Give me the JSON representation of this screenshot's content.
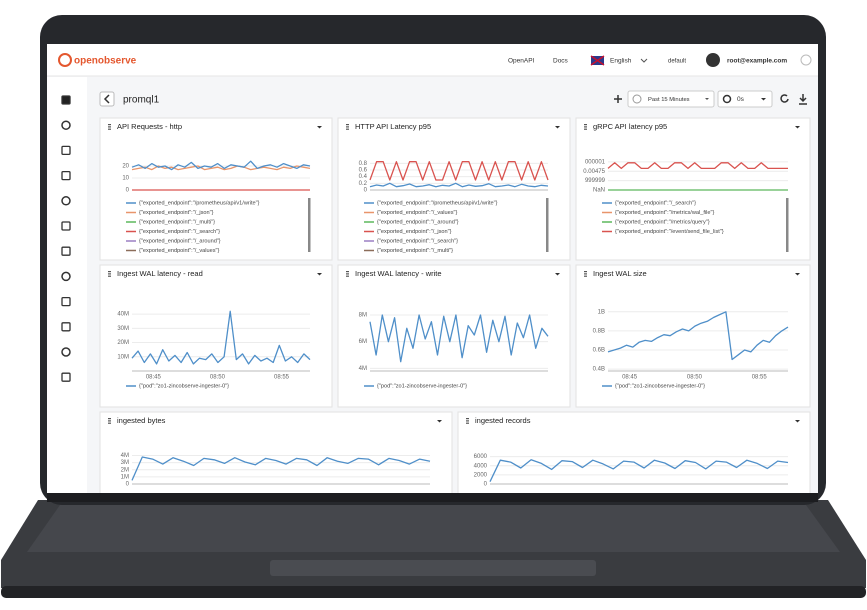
{
  "header": {
    "logo": "openobserve",
    "nav": [
      "OpenAPI",
      "Docs",
      "English",
      "default",
      "root@example.com"
    ]
  },
  "toolbar": {
    "dashboard": "promql1",
    "time_range": "Past 15 Minutes",
    "refresh": "0s"
  },
  "panels": [
    {
      "title": "API Requests - http",
      "ylim": [
        0,
        25
      ],
      "yticks": [
        0,
        10,
        20
      ],
      "legend": [
        {
          "label": "{\"exported_endpoint\":\"/prometheus/api/v1/write\"}",
          "color": "#4f8fc9"
        },
        {
          "label": "{\"exported_endpoint\":\"/_json\"}",
          "color": "#e8956b"
        },
        {
          "label": "{\"exported_endpoint\":\"/_multi\"}",
          "color": "#5cb85c"
        },
        {
          "label": "{\"exported_endpoint\":\"/_search\"}",
          "color": "#d9534f"
        },
        {
          "label": "{\"exported_endpoint\":\"/_around\"}",
          "color": "#9b7fc2"
        },
        {
          "label": "{\"exported_endpoint\":\"/_values\"}",
          "color": "#8c6d5a"
        }
      ],
      "series": [
        {
          "color": "#e8956b",
          "values": [
            17,
            18,
            19,
            17,
            20,
            18,
            19,
            17,
            18,
            19,
            20,
            17,
            18,
            19,
            17,
            18,
            20,
            19,
            17,
            18,
            19,
            18,
            17,
            19,
            18,
            20,
            19,
            18
          ]
        },
        {
          "color": "#4f8fc9",
          "values": [
            19,
            21,
            18,
            22,
            19,
            20,
            17,
            21,
            19,
            23,
            18,
            20,
            19,
            22,
            18,
            21,
            20,
            19,
            24,
            18,
            20,
            21,
            19,
            22,
            20,
            18,
            21,
            20
          ]
        },
        {
          "color": "#d9534f",
          "values": [
            0,
            0,
            0,
            0
          ]
        }
      ]
    },
    {
      "title": "HTTP API Latency p95",
      "ylim": [
        0,
        0.9
      ],
      "yticks": [
        0,
        0.2,
        0.4,
        0.6,
        0.8
      ],
      "legend": [
        {
          "label": "{\"exported_endpoint\":\"/prometheus/api/v1/write\"}",
          "color": "#4f8fc9"
        },
        {
          "label": "{\"exported_endpoint\":\"/_values\"}",
          "color": "#e8956b"
        },
        {
          "label": "{\"exported_endpoint\":\"/_around\"}",
          "color": "#5cb85c"
        },
        {
          "label": "{\"exported_endpoint\":\"/_json\"}",
          "color": "#d9534f"
        },
        {
          "label": "{\"exported_endpoint\":\"/_search\"}",
          "color": "#9b7fc2"
        },
        {
          "label": "{\"exported_endpoint\":\"/_multi\"}",
          "color": "#8c6d5a"
        }
      ],
      "series": [
        {
          "color": "#4f8fc9",
          "values": [
            0.1,
            0.15,
            0.12,
            0.2,
            0.1,
            0.13,
            0.18,
            0.1,
            0.12,
            0.16,
            0.1,
            0.14,
            0.12,
            0.2,
            0.1,
            0.15,
            0.11,
            0.13,
            0.19,
            0.1,
            0.12,
            0.15,
            0.1,
            0.17,
            0.12,
            0.1,
            0.14,
            0.12
          ]
        },
        {
          "color": "#d9534f",
          "values": [
            0.3,
            0.85,
            0.85,
            0.3,
            0.85,
            0.3,
            0.85,
            0.85,
            0.3,
            0.85,
            0.3,
            0.3,
            0.85,
            0.3,
            0.85,
            0.85,
            0.3,
            0.85,
            0.3,
            0.85,
            0.3,
            0.85,
            0.85,
            0.3,
            0.85,
            0.3,
            0.85,
            0.3
          ]
        }
      ]
    },
    {
      "title": "gRPC API latency p95",
      "ylim": [
        0,
        3.2
      ],
      "yticks": [
        {
          "value": 3,
          "label": "000001"
        },
        {
          "value": 2,
          "label": "0.00475"
        },
        {
          "value": 1,
          "label": "999999"
        },
        {
          "value": 0,
          "label": "NaN"
        }
      ],
      "legend": [
        {
          "label": "{\"exported_endpoint\":\"/_search\"}",
          "color": "#4f8fc9"
        },
        {
          "label": "{\"exported_endpoint\":\"/metrics/wal_file\"}",
          "color": "#e8956b"
        },
        {
          "label": "{\"exported_endpoint\":\"/metrics/query\"}",
          "color": "#5cb85c"
        },
        {
          "label": "{\"exported_endpoint\":\"/event/send_file_list\"}",
          "color": "#d9534f"
        }
      ],
      "series": [
        {
          "color": "#d9534f",
          "values": [
            2.3,
            2.9,
            2.3,
            2.9,
            2.9,
            2.3,
            2.3,
            2.9,
            2.3,
            2.3,
            2.9,
            2.9,
            2.3,
            2.9,
            2.3,
            2.3,
            2.3,
            2.9,
            2.9,
            2.3,
            2.9,
            2.3,
            2.3,
            2.9,
            2.3,
            2.3,
            2.3,
            2.3
          ]
        },
        {
          "color": "#5cb85c",
          "values": [
            0,
            0,
            0,
            0
          ]
        }
      ]
    },
    {
      "title": "Ingest WAL latency - read",
      "ylim": [
        0,
        45000000.0
      ],
      "yticks": [
        {
          "value": 10000000.0,
          "label": "10M"
        },
        {
          "value": 20000000.0,
          "label": "20M"
        },
        {
          "value": 30000000.0,
          "label": "30M"
        },
        {
          "value": 40000000.0,
          "label": "40M"
        }
      ],
      "xticks": [
        "08:45",
        "08:50",
        "08:55"
      ],
      "legend": [
        {
          "label": "{\"pod\":\"zo1-zincobserve-ingester-0\"}",
          "color": "#4f8fc9"
        }
      ],
      "series": [
        {
          "color": "#4f8fc9",
          "values": [
            9000000.0,
            14000000.0,
            6000000.0,
            12000000.0,
            5000000.0,
            15000000.0,
            7000000.0,
            11000000.0,
            6000000.0,
            13000000.0,
            5000000.0,
            9000000.0,
            8000000.0,
            12000000.0,
            6000000.0,
            10000000.0,
            42000000.0,
            8000000.0,
            12000000.0,
            5000000.0,
            11000000.0,
            7000000.0,
            9000000.0,
            6000000.0,
            18000000.0,
            7000000.0,
            10000000.0,
            6000000.0,
            12000000.0,
            8000000.0
          ]
        }
      ]
    },
    {
      "title": "Ingest WAL latency - write",
      "ylim": [
        3800000.0,
        8600000.0
      ],
      "yticks": [
        {
          "value": 4000000.0,
          "label": "4M"
        },
        {
          "value": 6000000.0,
          "label": "6M"
        },
        {
          "value": 8000000.0,
          "label": "8M"
        }
      ],
      "legend": [
        {
          "label": "{\"pod\":\"zo1-zincobserve-ingester-0\"}",
          "color": "#4f8fc9"
        }
      ],
      "series": [
        {
          "color": "#4f8fc9",
          "values": [
            7500000.0,
            5000000.0,
            8000000.0,
            6000000.0,
            7800000.0,
            4500000.0,
            7000000.0,
            5500000.0,
            8000000.0,
            6200000.0,
            7500000.0,
            5000000.0,
            7900000.0,
            6000000.0,
            8000000.0,
            4800000.0,
            7200000.0,
            6500000.0,
            8000000.0,
            5200000.0,
            7600000.0,
            6000000.0,
            7900000.0,
            5000000.0,
            7400000.0,
            6300000.0,
            8000000.0,
            5500000.0,
            7000000.0,
            6400000.0
          ]
        }
      ]
    },
    {
      "title": "Ingest WAL size",
      "ylim": [
        380000000.0,
        1050000000.0
      ],
      "yticks": [
        {
          "value": 400000000.0,
          "label": "0.4B"
        },
        {
          "value": 600000000.0,
          "label": "0.6B"
        },
        {
          "value": 800000000.0,
          "label": "0.8B"
        },
        {
          "value": 1000000000.0,
          "label": "1B"
        }
      ],
      "xticks": [
        "08:45",
        "08:50",
        "08:55"
      ],
      "legend": [
        {
          "label": "{\"pod\":\"zo1-zincobserve-ingester-0\"}",
          "color": "#4f8fc9"
        }
      ],
      "series": [
        {
          "color": "#4f8fc9",
          "values": [
            580000000.0,
            600000000.0,
            620000000.0,
            650000000.0,
            630000000.0,
            680000000.0,
            700000000.0,
            690000000.0,
            730000000.0,
            760000000.0,
            750000000.0,
            790000000.0,
            820000000.0,
            800000000.0,
            850000000.0,
            880000000.0,
            900000000.0,
            940000000.0,
            970000000.0,
            1000000000.0,
            500000000.0,
            550000000.0,
            600000000.0,
            580000000.0,
            650000000.0,
            700000000.0,
            680000000.0,
            750000000.0,
            800000000.0,
            840000000.0
          ]
        }
      ]
    },
    {
      "title": "ingested bytes",
      "ylim": [
        0,
        4500000.0
      ],
      "yticks": [
        0,
        {
          "value": 1000000.0,
          "label": "1M"
        },
        {
          "value": 2000000.0,
          "label": "2M"
        },
        {
          "value": 3000000.0,
          "label": "3M"
        },
        {
          "value": 4000000.0,
          "label": "4M"
        }
      ],
      "series": [
        {
          "color": "#4f8fc9",
          "values": [
            500000.0,
            3800000.0,
            3500000.0,
            2800000.0,
            3700000.0,
            3200000.0,
            2600000.0,
            3600000.0,
            3400000.0,
            2900000.0,
            3700000.0,
            3100000.0,
            2700000.0,
            3600000.0,
            3300000.0,
            2800000.0,
            3600000.0,
            3400000.0,
            2600000.0,
            3700000.0,
            3200000.0,
            2900000.0,
            3600000.0,
            3500000.0,
            2700000.0,
            3600000.0,
            3300000.0,
            2800000.0,
            3500000.0,
            3200000.0
          ]
        }
      ]
    },
    {
      "title": "ingested records",
      "ylim": [
        0,
        7000
      ],
      "yticks": [
        0,
        2000,
        4000,
        6000
      ],
      "series": [
        {
          "color": "#4f8fc9",
          "values": [
            500,
            5200,
            4800,
            3500,
            5300,
            4500,
            3200,
            5100,
            4900,
            3600,
            5200,
            4400,
            3300,
            5000,
            4800,
            3500,
            5200,
            4600,
            3400,
            5100,
            4700,
            3300,
            5000,
            4800,
            3600,
            5200,
            4500,
            3400,
            5000,
            4700
          ]
        }
      ]
    }
  ]
}
